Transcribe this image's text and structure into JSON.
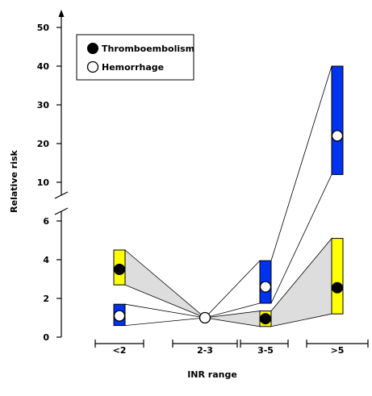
{
  "chart_data": {
    "type": "range-bar",
    "title": "",
    "xlabel": "INR range",
    "ylabel": "Relative risk",
    "categories": [
      "<2",
      "2-3",
      "3-5",
      ">5"
    ],
    "y_axis": {
      "broken": true,
      "lower_segment": {
        "range": [
          0,
          6.5
        ],
        "ticks": [
          0,
          2,
          4,
          6
        ]
      },
      "upper_segment": {
        "range": [
          8,
          50
        ],
        "ticks": [
          10,
          20,
          30,
          40,
          50
        ]
      },
      "arrow_at_top": true
    },
    "series": [
      {
        "name": "Thromboembolism",
        "marker": "filled-circle",
        "bar_color": "#ffff00",
        "points": [
          {
            "category": "<2",
            "value": 3.5,
            "low": 2.7,
            "high": 4.5
          },
          {
            "category": "2-3",
            "value": 1.0,
            "low": 1.0,
            "high": 1.0
          },
          {
            "category": "3-5",
            "value": 0.95,
            "low": 0.55,
            "high": 1.35
          },
          {
            "category": ">5",
            "value": 2.55,
            "low": 1.2,
            "high": 5.1
          }
        ]
      },
      {
        "name": "Hemorrhage",
        "marker": "open-circle",
        "bar_color": "#0033ee",
        "points": [
          {
            "category": "<2",
            "value": 1.1,
            "low": 0.6,
            "high": 1.7
          },
          {
            "category": "2-3",
            "value": 1.0,
            "low": 1.0,
            "high": 1.0
          },
          {
            "category": "3-5",
            "value": 2.6,
            "low": 1.75,
            "high": 3.95
          },
          {
            "category": ">5",
            "value": 22,
            "low": 12,
            "high": 40
          }
        ]
      }
    ],
    "band_fill": "#dddddd",
    "legend": {
      "placement": "top-left",
      "entries": [
        "Thromboembolism",
        "Hemorrhage"
      ]
    }
  }
}
